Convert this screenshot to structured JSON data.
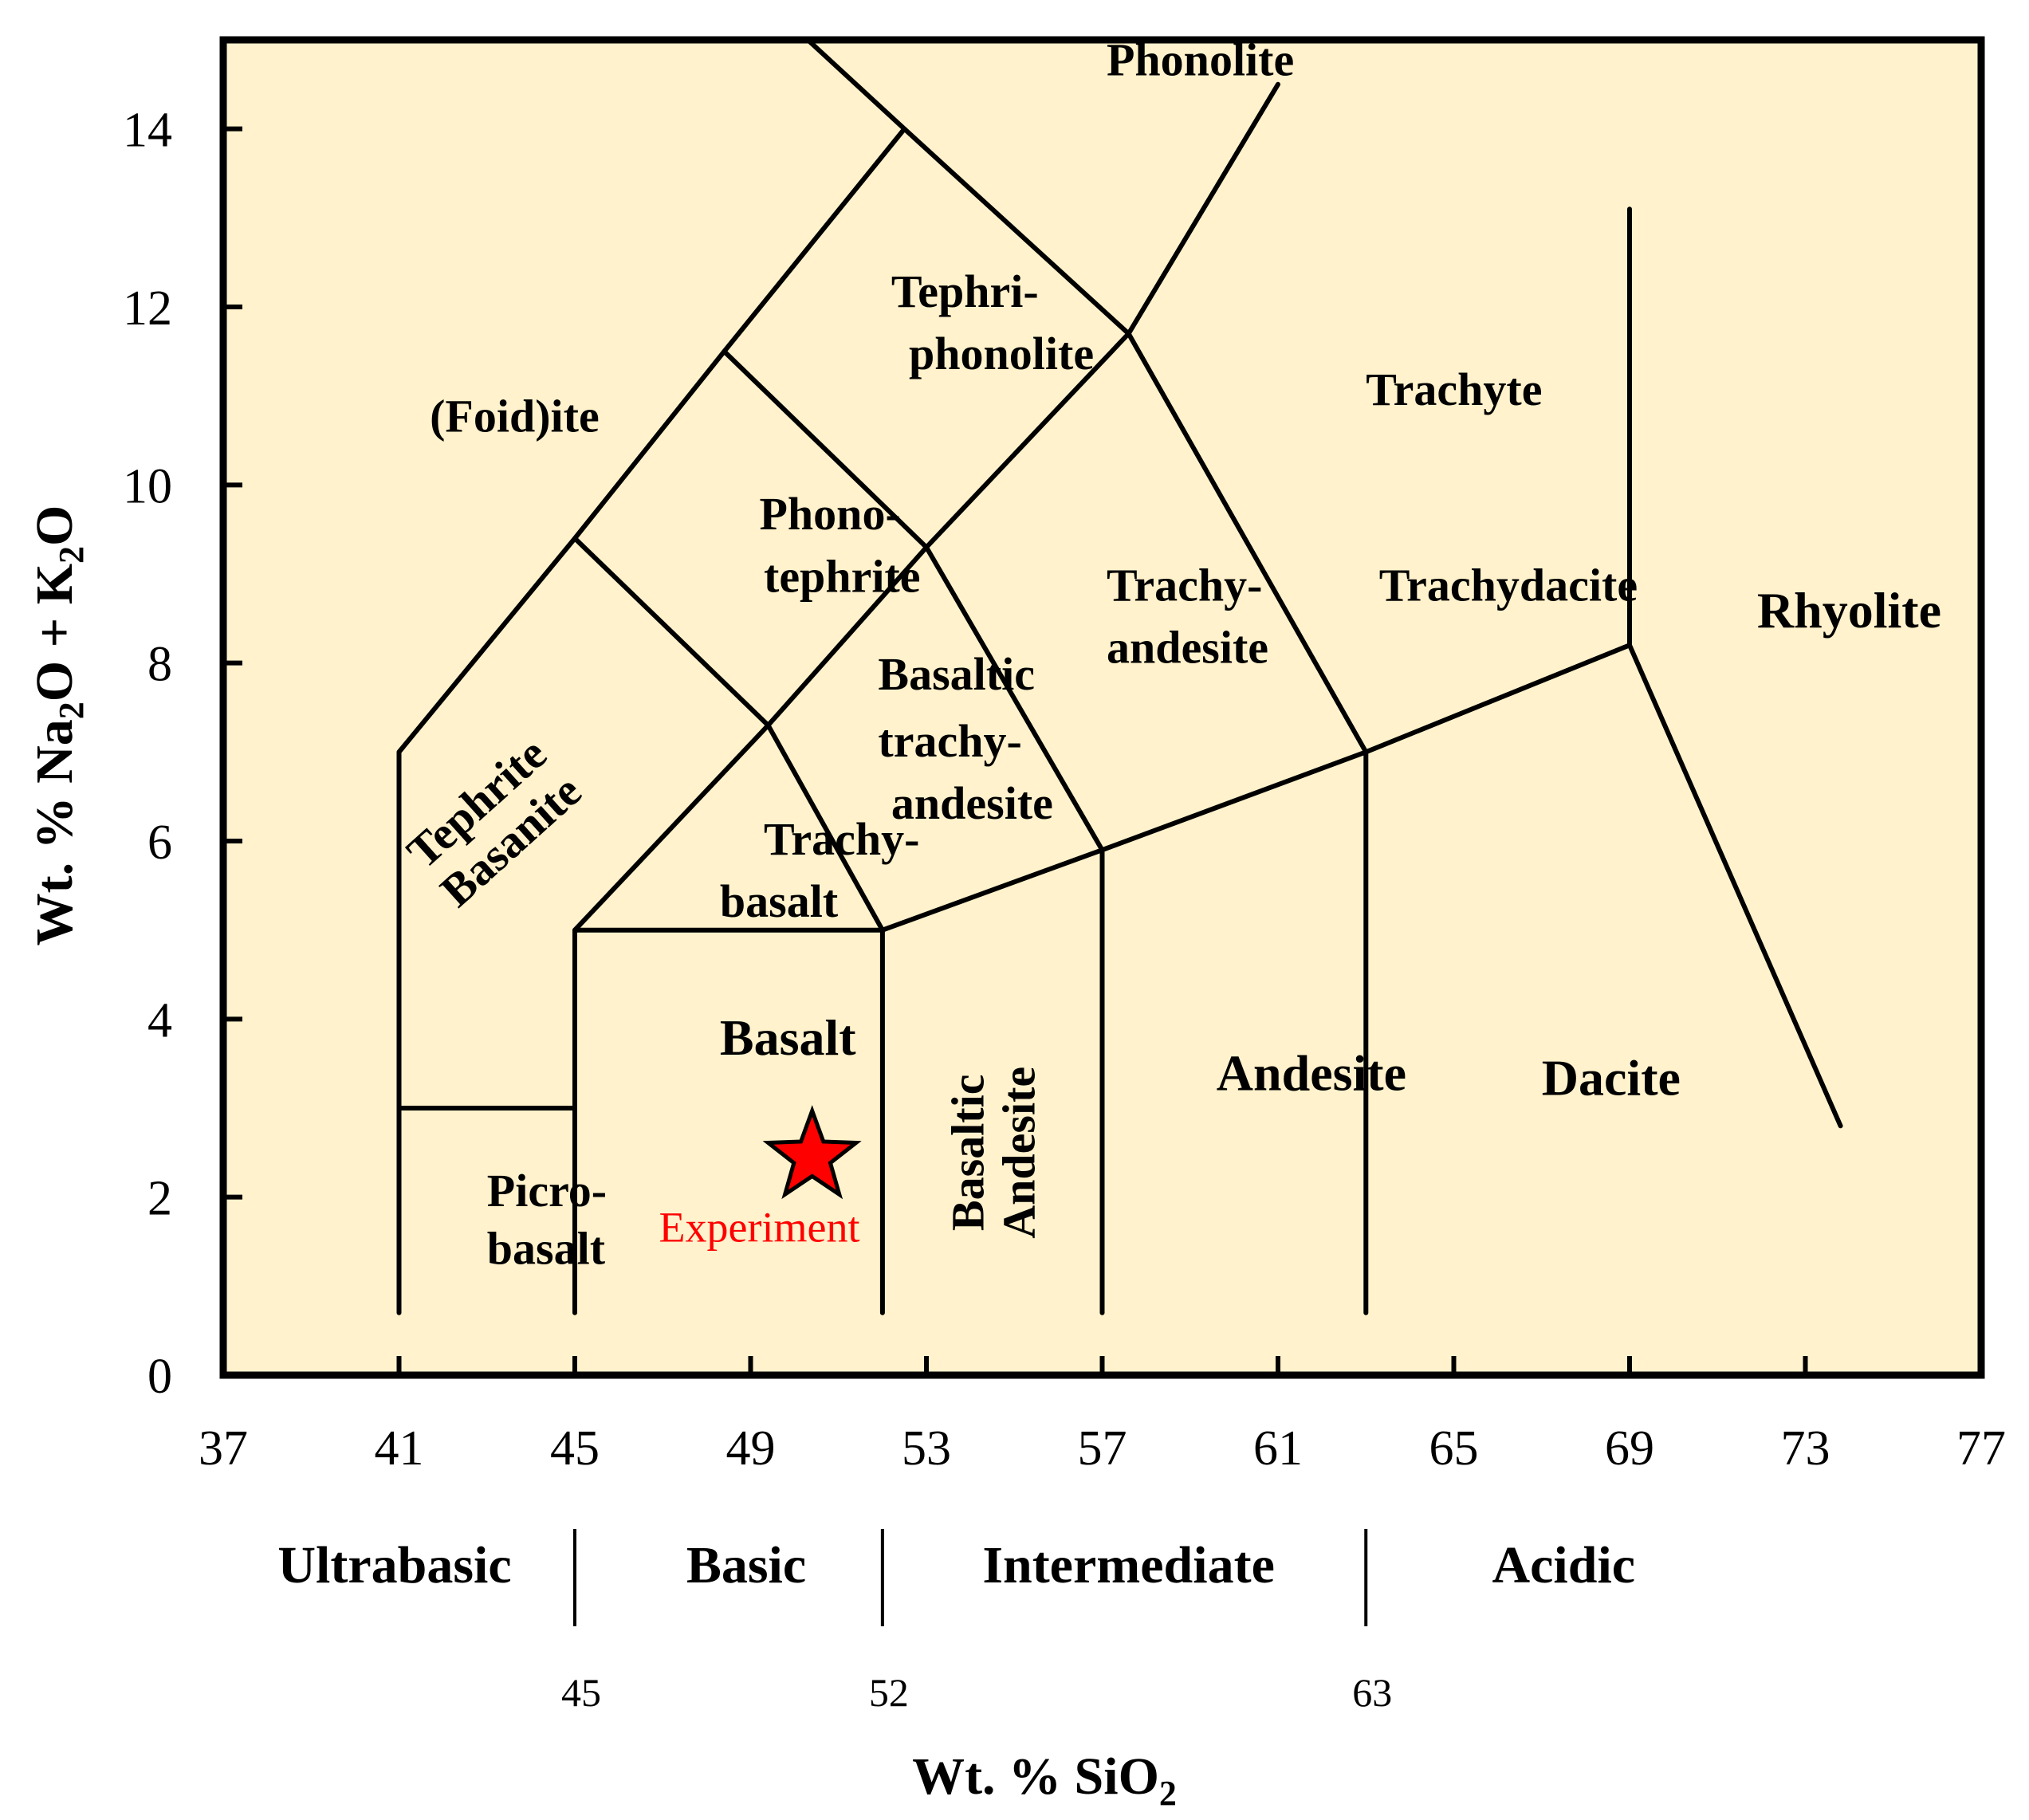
{
  "chart_data": {
    "type": "scatter",
    "title": "",
    "xlabel": "Wt. % SiO",
    "xlabel_sub": "2",
    "ylabel_parts": [
      "Wt. % Na",
      "2",
      "O + K",
      "2",
      "O"
    ],
    "xlim": [
      37,
      77
    ],
    "ylim": [
      0,
      15
    ],
    "xticks": [
      37,
      41,
      45,
      49,
      53,
      57,
      61,
      65,
      69,
      73,
      77
    ],
    "yticks": [
      0,
      2,
      4,
      6,
      8,
      10,
      12,
      14
    ],
    "grid": false,
    "legend": "none",
    "plot_background": "#fff2cc",
    "boundary_lines": [
      [
        [
          41,
          0.7
        ],
        [
          41,
          7.0
        ],
        [
          45,
          9.4
        ],
        [
          48.4,
          11.5
        ],
        [
          52.5,
          14.0
        ],
        [
          48.4,
          11.5
        ],
        [
          52.5,
          14.0
        ],
        [
          50.3,
          15.0
        ]
      ],
      [
        [
          41,
          3.0
        ],
        [
          45,
          3.0
        ]
      ],
      [
        [
          45,
          0.7
        ],
        [
          45,
          5.0
        ],
        [
          52,
          5.0
        ],
        [
          52,
          0.7
        ]
      ],
      [
        [
          45,
          5.0
        ],
        [
          49.4,
          7.3
        ],
        [
          45,
          9.4
        ]
      ],
      [
        [
          49.4,
          7.3
        ],
        [
          52,
          5.0
        ]
      ],
      [
        [
          49.4,
          7.3
        ],
        [
          53,
          9.3
        ],
        [
          48.4,
          11.5
        ]
      ],
      [
        [
          53,
          9.3
        ],
        [
          57.6,
          11.7
        ],
        [
          52.5,
          14.0
        ]
      ],
      [
        [
          53,
          9.3
        ],
        [
          57,
          5.9
        ],
        [
          52,
          5.0
        ]
      ],
      [
        [
          57,
          0.7
        ],
        [
          57,
          5.9
        ],
        [
          63,
          7.0
        ],
        [
          63,
          0.7
        ]
      ],
      [
        [
          57.6,
          11.7
        ],
        [
          63,
          7.0
        ]
      ],
      [
        [
          57.6,
          11.7
        ],
        [
          61.0,
          14.5
        ]
      ],
      [
        [
          63,
          7.0
        ],
        [
          69,
          8.2
        ],
        [
          69,
          13.1
        ]
      ],
      [
        [
          69,
          8.2
        ],
        [
          73.8,
          2.8
        ]
      ]
    ],
    "regions": [
      {
        "name": "Phonolite",
        "x": 57.1,
        "y": 14.6,
        "style": "md"
      },
      {
        "name": "Tephri-",
        "x": 52.2,
        "y": 12.0,
        "style": "md"
      },
      {
        "name": "phonolite",
        "x": 52.6,
        "y": 11.3,
        "style": "md"
      },
      {
        "name": "(Foid)ite",
        "x": 41.7,
        "y": 10.6,
        "style": "md"
      },
      {
        "name": "Trachyte",
        "x": 63.0,
        "y": 10.9,
        "style": "md"
      },
      {
        "name": "Phono-",
        "x": 49.2,
        "y": 9.5,
        "style": "md"
      },
      {
        "name": "tephrite",
        "x": 49.3,
        "y": 8.8,
        "style": "md"
      },
      {
        "name": "Trachy-",
        "x": 57.1,
        "y": 8.7,
        "style": "md"
      },
      {
        "name": "andesite",
        "x": 57.1,
        "y": 8.0,
        "style": "md"
      },
      {
        "name": "Trachydacite",
        "x": 63.3,
        "y": 8.7,
        "style": "md"
      },
      {
        "name": "Rhyolite",
        "x": 71.9,
        "y": 8.4,
        "style": "lg"
      },
      {
        "name": "Basaltic",
        "x": 51.9,
        "y": 7.7,
        "style": "md"
      },
      {
        "name": "trachy-",
        "x": 51.9,
        "y": 6.95,
        "style": "md"
      },
      {
        "name": "andesite",
        "x": 52.2,
        "y": 6.25,
        "style": "md"
      },
      {
        "name": "Trachy-",
        "x": 49.3,
        "y": 5.85,
        "style": "md"
      },
      {
        "name": "basalt",
        "x": 48.3,
        "y": 5.15,
        "style": "md"
      },
      {
        "name": "Basalt",
        "x": 48.3,
        "y": 3.6,
        "style": "lg"
      },
      {
        "name": "Andesite",
        "x": 59.6,
        "y": 3.2,
        "style": "lg"
      },
      {
        "name": "Dacite",
        "x": 67.0,
        "y": 3.15,
        "style": "lg"
      },
      {
        "name": "Picro-",
        "x": 43.0,
        "y": 1.9,
        "style": "md"
      },
      {
        "name": "basalt",
        "x": 43.0,
        "y": 1.25,
        "style": "md"
      }
    ],
    "rotated_regions": [
      {
        "lines": [
          "Tephrite",
          "Basanite"
        ],
        "x": 43.0,
        "y": 6.3,
        "angle": -42
      },
      {
        "lines": [
          "Basaltic",
          "Andesite"
        ],
        "x": 54.3,
        "y": 2.5,
        "angle": -90
      }
    ],
    "points": [
      {
        "x": 50.4,
        "y": 2.45,
        "label": "Experiment",
        "marker": "star",
        "color": "#ff0000",
        "label_x": 49.2,
        "label_y": 1.5
      }
    ],
    "classification": [
      {
        "name": "Ultrabasic",
        "x": 40.9
      },
      {
        "name": "Basic",
        "x": 48.9
      },
      {
        "name": "Intermediate",
        "x": 57.6
      },
      {
        "name": "Acidic",
        "x": 67.5
      }
    ],
    "class_boundaries": [
      45,
      52,
      63
    ]
  }
}
